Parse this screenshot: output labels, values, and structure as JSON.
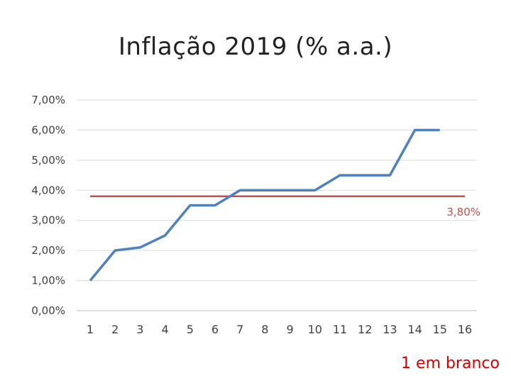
{
  "chart_data": {
    "type": "line",
    "title": "Inflação 2019 (% a.a.)",
    "xlabel": "",
    "ylabel": "",
    "x": [
      1,
      2,
      3,
      4,
      5,
      6,
      7,
      8,
      9,
      10,
      11,
      12,
      13,
      14,
      15
    ],
    "x_tick_labels": [
      "1",
      "2",
      "3",
      "4",
      "5",
      "6",
      "7",
      "8",
      "9",
      "10",
      "11",
      "12",
      "13",
      "14",
      "15",
      "16"
    ],
    "series": [
      {
        "values": [
          1.0,
          2.0,
          2.1,
          2.5,
          3.5,
          3.5,
          4.0,
          4.0,
          4.0,
          4.0,
          4.5,
          4.5,
          4.5,
          6.0,
          6.0
        ],
        "color": "#4f81bd"
      }
    ],
    "reference_line": {
      "value": 3.8,
      "label": "3,80%",
      "color": "#c0504d"
    },
    "y_ticks": [
      0,
      1,
      2,
      3,
      4,
      5,
      6,
      7
    ],
    "y_tick_labels": [
      "0,00%",
      "1,00%",
      "2,00%",
      "3,00%",
      "4,00%",
      "5,00%",
      "6,00%",
      "7,00%"
    ],
    "ylim": [
      0,
      7
    ],
    "grid": true,
    "legend": "none"
  },
  "footnote": "1 em branco",
  "colors": {
    "grid": "#d9d9d9",
    "axis": "#bfbfbf",
    "tick_text": "#404040",
    "footnote": "#d40000"
  }
}
